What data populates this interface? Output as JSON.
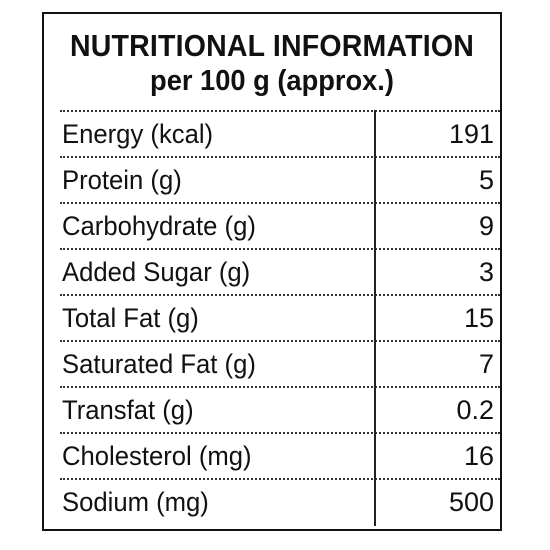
{
  "header": {
    "title": "NUTRITIONAL INFORMATION",
    "subtitle": "per 100 g (approx.)"
  },
  "table": {
    "rows": [
      {
        "name": "Energy (kcal)",
        "value": "191"
      },
      {
        "name": "Protein (g)",
        "value": "5"
      },
      {
        "name": "Carbohydrate (g)",
        "value": "9"
      },
      {
        "name": "Added Sugar (g)",
        "value": "3"
      },
      {
        "name": "Total Fat (g)",
        "value": "15"
      },
      {
        "name": "Saturated Fat (g)",
        "value": "7"
      },
      {
        "name": "Transfat (g)",
        "value": "0.2"
      },
      {
        "name": "Cholesterol (mg)",
        "value": "16"
      },
      {
        "name": "Sodium (mg)",
        "value": "500"
      }
    ]
  }
}
